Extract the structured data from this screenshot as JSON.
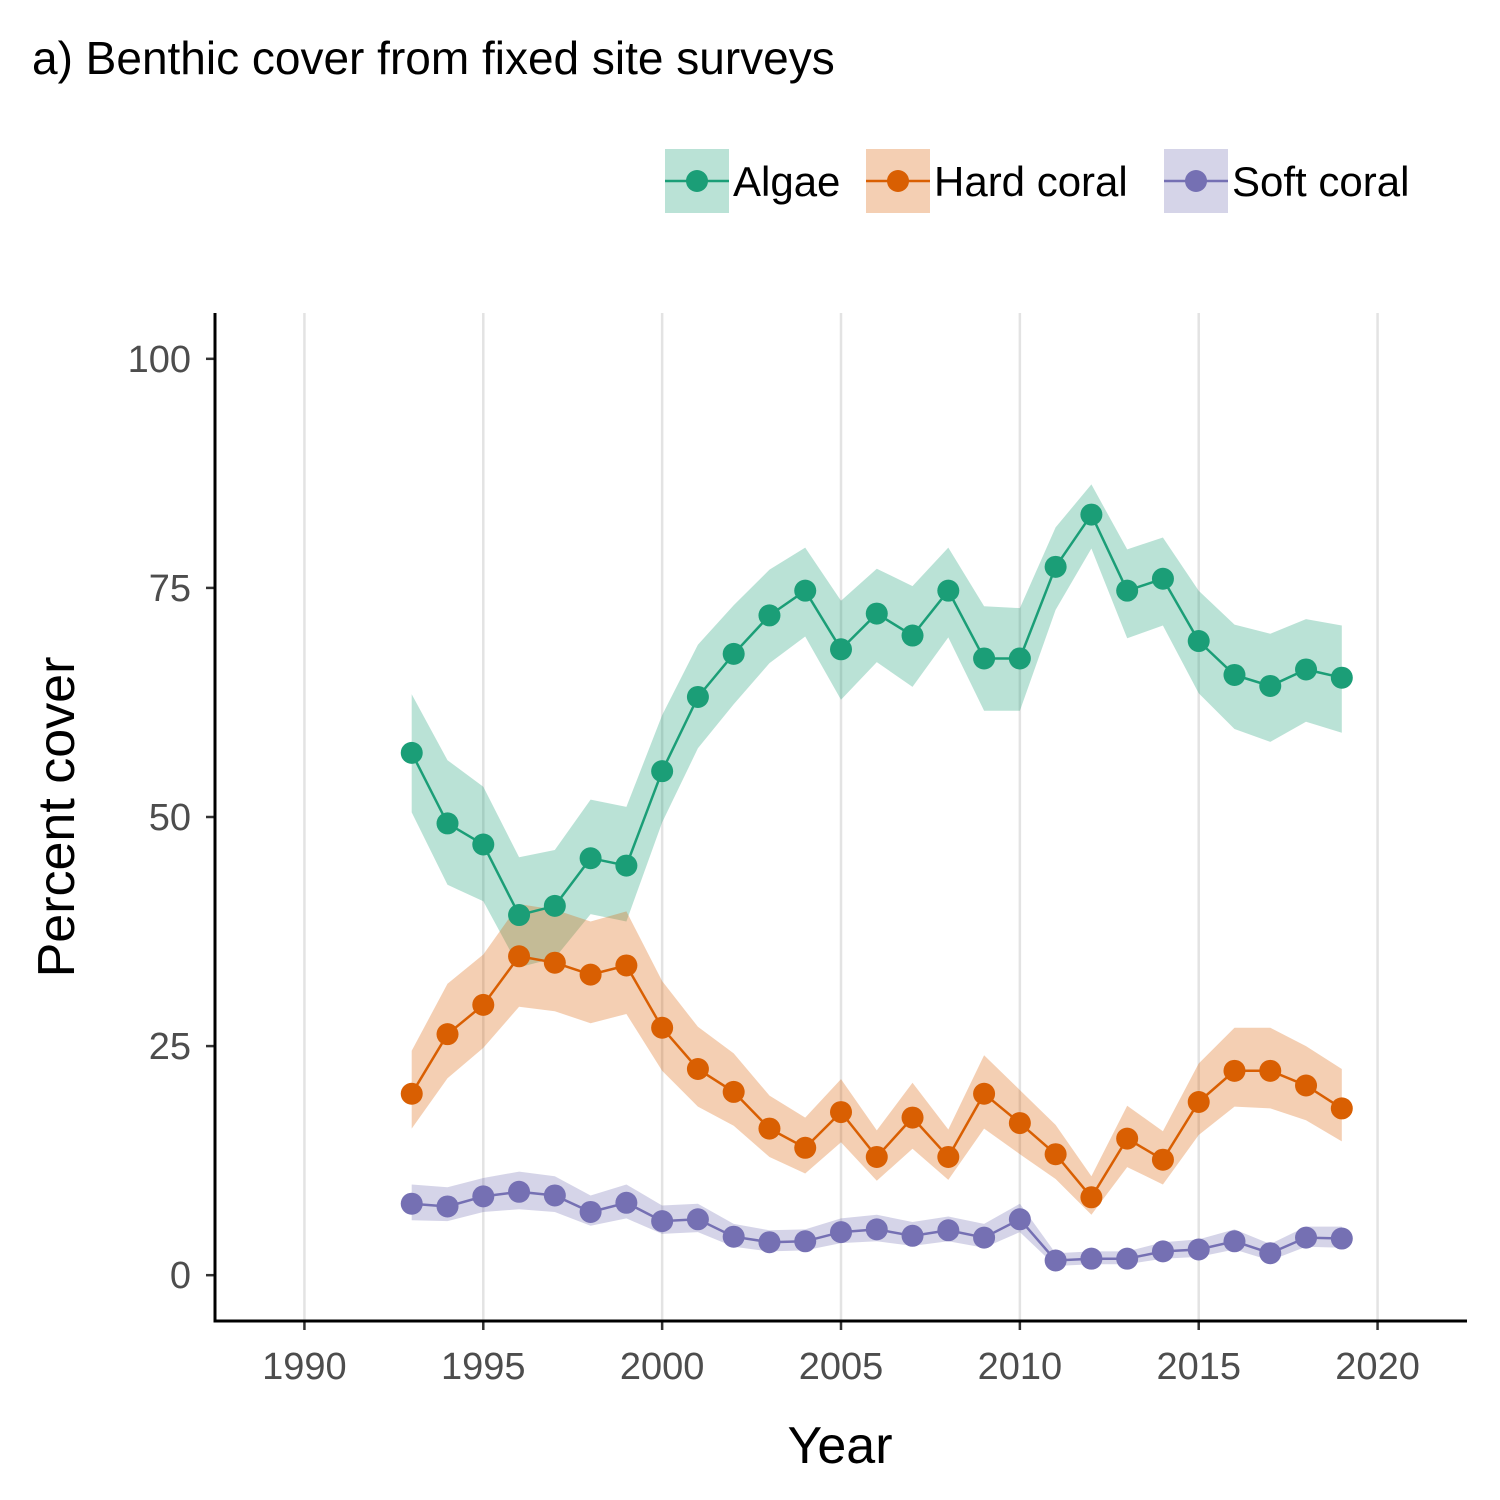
{
  "chart_data": {
    "type": "line",
    "title": "a) Benthic cover from fixed site surveys",
    "xlabel": "Year",
    "ylabel": "Percent cover",
    "xlim": [
      1987.5,
      2022.5
    ],
    "ylim": [
      -5,
      105
    ],
    "xticks": [
      1990,
      1995,
      2000,
      2005,
      2010,
      2015,
      2020
    ],
    "yticks": [
      0,
      25,
      50,
      75,
      100
    ],
    "grid": "vertical-major",
    "legend": "top-right",
    "x": [
      1993,
      1994,
      1995,
      1996,
      1997,
      1998,
      1999,
      2000,
      2001,
      2002,
      2003,
      2004,
      2005,
      2006,
      2007,
      2008,
      2009,
      2010,
      2011,
      2012,
      2013,
      2014,
      2015,
      2016,
      2017,
      2018,
      2019
    ],
    "series": [
      {
        "name": "Algae",
        "color": "#1b9e77",
        "fill": "#b9e3d6",
        "values": [
          57.0,
          49.3,
          47.0,
          39.3,
          40.3,
          45.5,
          44.7,
          55.0,
          63.1,
          67.8,
          72.0,
          74.7,
          68.3,
          72.2,
          69.8,
          74.7,
          67.3,
          67.3,
          77.3,
          83.0,
          74.7,
          76.0,
          69.2,
          65.5,
          64.3,
          66.1,
          65.2
        ],
        "lower": [
          50.5,
          42.6,
          40.8,
          33.6,
          34.6,
          39.4,
          38.6,
          49.4,
          57.5,
          62.3,
          66.8,
          69.7,
          62.8,
          66.9,
          64.2,
          69.6,
          61.6,
          61.6,
          72.6,
          79.3,
          69.5,
          70.9,
          63.5,
          59.6,
          58.2,
          60.4,
          59.2
        ],
        "upper": [
          63.4,
          56.2,
          53.3,
          45.6,
          46.4,
          51.9,
          51.1,
          61.1,
          68.8,
          73.1,
          77.0,
          79.4,
          73.6,
          77.1,
          75.2,
          79.4,
          73.0,
          72.8,
          81.6,
          86.3,
          79.2,
          80.5,
          74.7,
          71.0,
          70.0,
          71.6,
          70.9
        ]
      },
      {
        "name": "Hard coral",
        "color": "#d95f02",
        "fill": "#f3cbb0",
        "values": [
          19.8,
          26.3,
          29.5,
          34.8,
          34.1,
          32.8,
          33.8,
          27.0,
          22.5,
          20.0,
          16.0,
          13.9,
          17.8,
          12.9,
          17.2,
          12.9,
          19.8,
          16.6,
          13.2,
          8.5,
          14.9,
          12.6,
          18.9,
          22.3,
          22.3,
          20.7,
          18.2
        ],
        "lower": [
          16.0,
          21.5,
          24.8,
          29.3,
          28.8,
          27.5,
          28.5,
          22.3,
          18.4,
          16.3,
          12.9,
          11.1,
          14.5,
          10.3,
          13.8,
          10.4,
          16.0,
          13.2,
          10.5,
          6.6,
          11.8,
          9.9,
          15.3,
          18.4,
          18.2,
          16.9,
          14.6
        ],
        "upper": [
          24.5,
          31.8,
          35.0,
          40.5,
          39.9,
          38.6,
          39.7,
          32.1,
          27.1,
          24.2,
          19.6,
          17.2,
          21.4,
          15.8,
          21.0,
          15.9,
          24.0,
          20.2,
          16.4,
          10.8,
          18.5,
          15.7,
          23.1,
          27.0,
          27.0,
          25.0,
          22.5
        ]
      },
      {
        "name": "Soft coral",
        "color": "#7570b3",
        "fill": "#d6d4ea",
        "values": [
          7.8,
          7.5,
          8.6,
          9.1,
          8.7,
          6.9,
          7.9,
          5.9,
          6.1,
          4.2,
          3.6,
          3.7,
          4.7,
          5.0,
          4.3,
          4.9,
          4.1,
          6.1,
          1.6,
          1.8,
          1.8,
          2.6,
          2.8,
          3.7,
          2.4,
          4.1,
          4.0
        ],
        "lower": [
          6.0,
          5.9,
          6.9,
          7.2,
          6.9,
          5.4,
          6.2,
          4.5,
          4.7,
          3.1,
          2.6,
          2.7,
          3.5,
          3.7,
          3.2,
          3.7,
          3.0,
          4.7,
          1.0,
          1.2,
          1.2,
          1.8,
          2.0,
          2.8,
          1.6,
          3.1,
          3.0
        ],
        "upper": [
          9.9,
          9.6,
          10.6,
          11.3,
          10.8,
          8.7,
          9.9,
          7.6,
          7.8,
          5.6,
          4.9,
          5.0,
          6.2,
          6.6,
          5.8,
          6.4,
          5.6,
          7.8,
          2.4,
          2.6,
          2.6,
          3.6,
          3.9,
          5.0,
          3.4,
          5.3,
          5.3
        ]
      }
    ]
  }
}
